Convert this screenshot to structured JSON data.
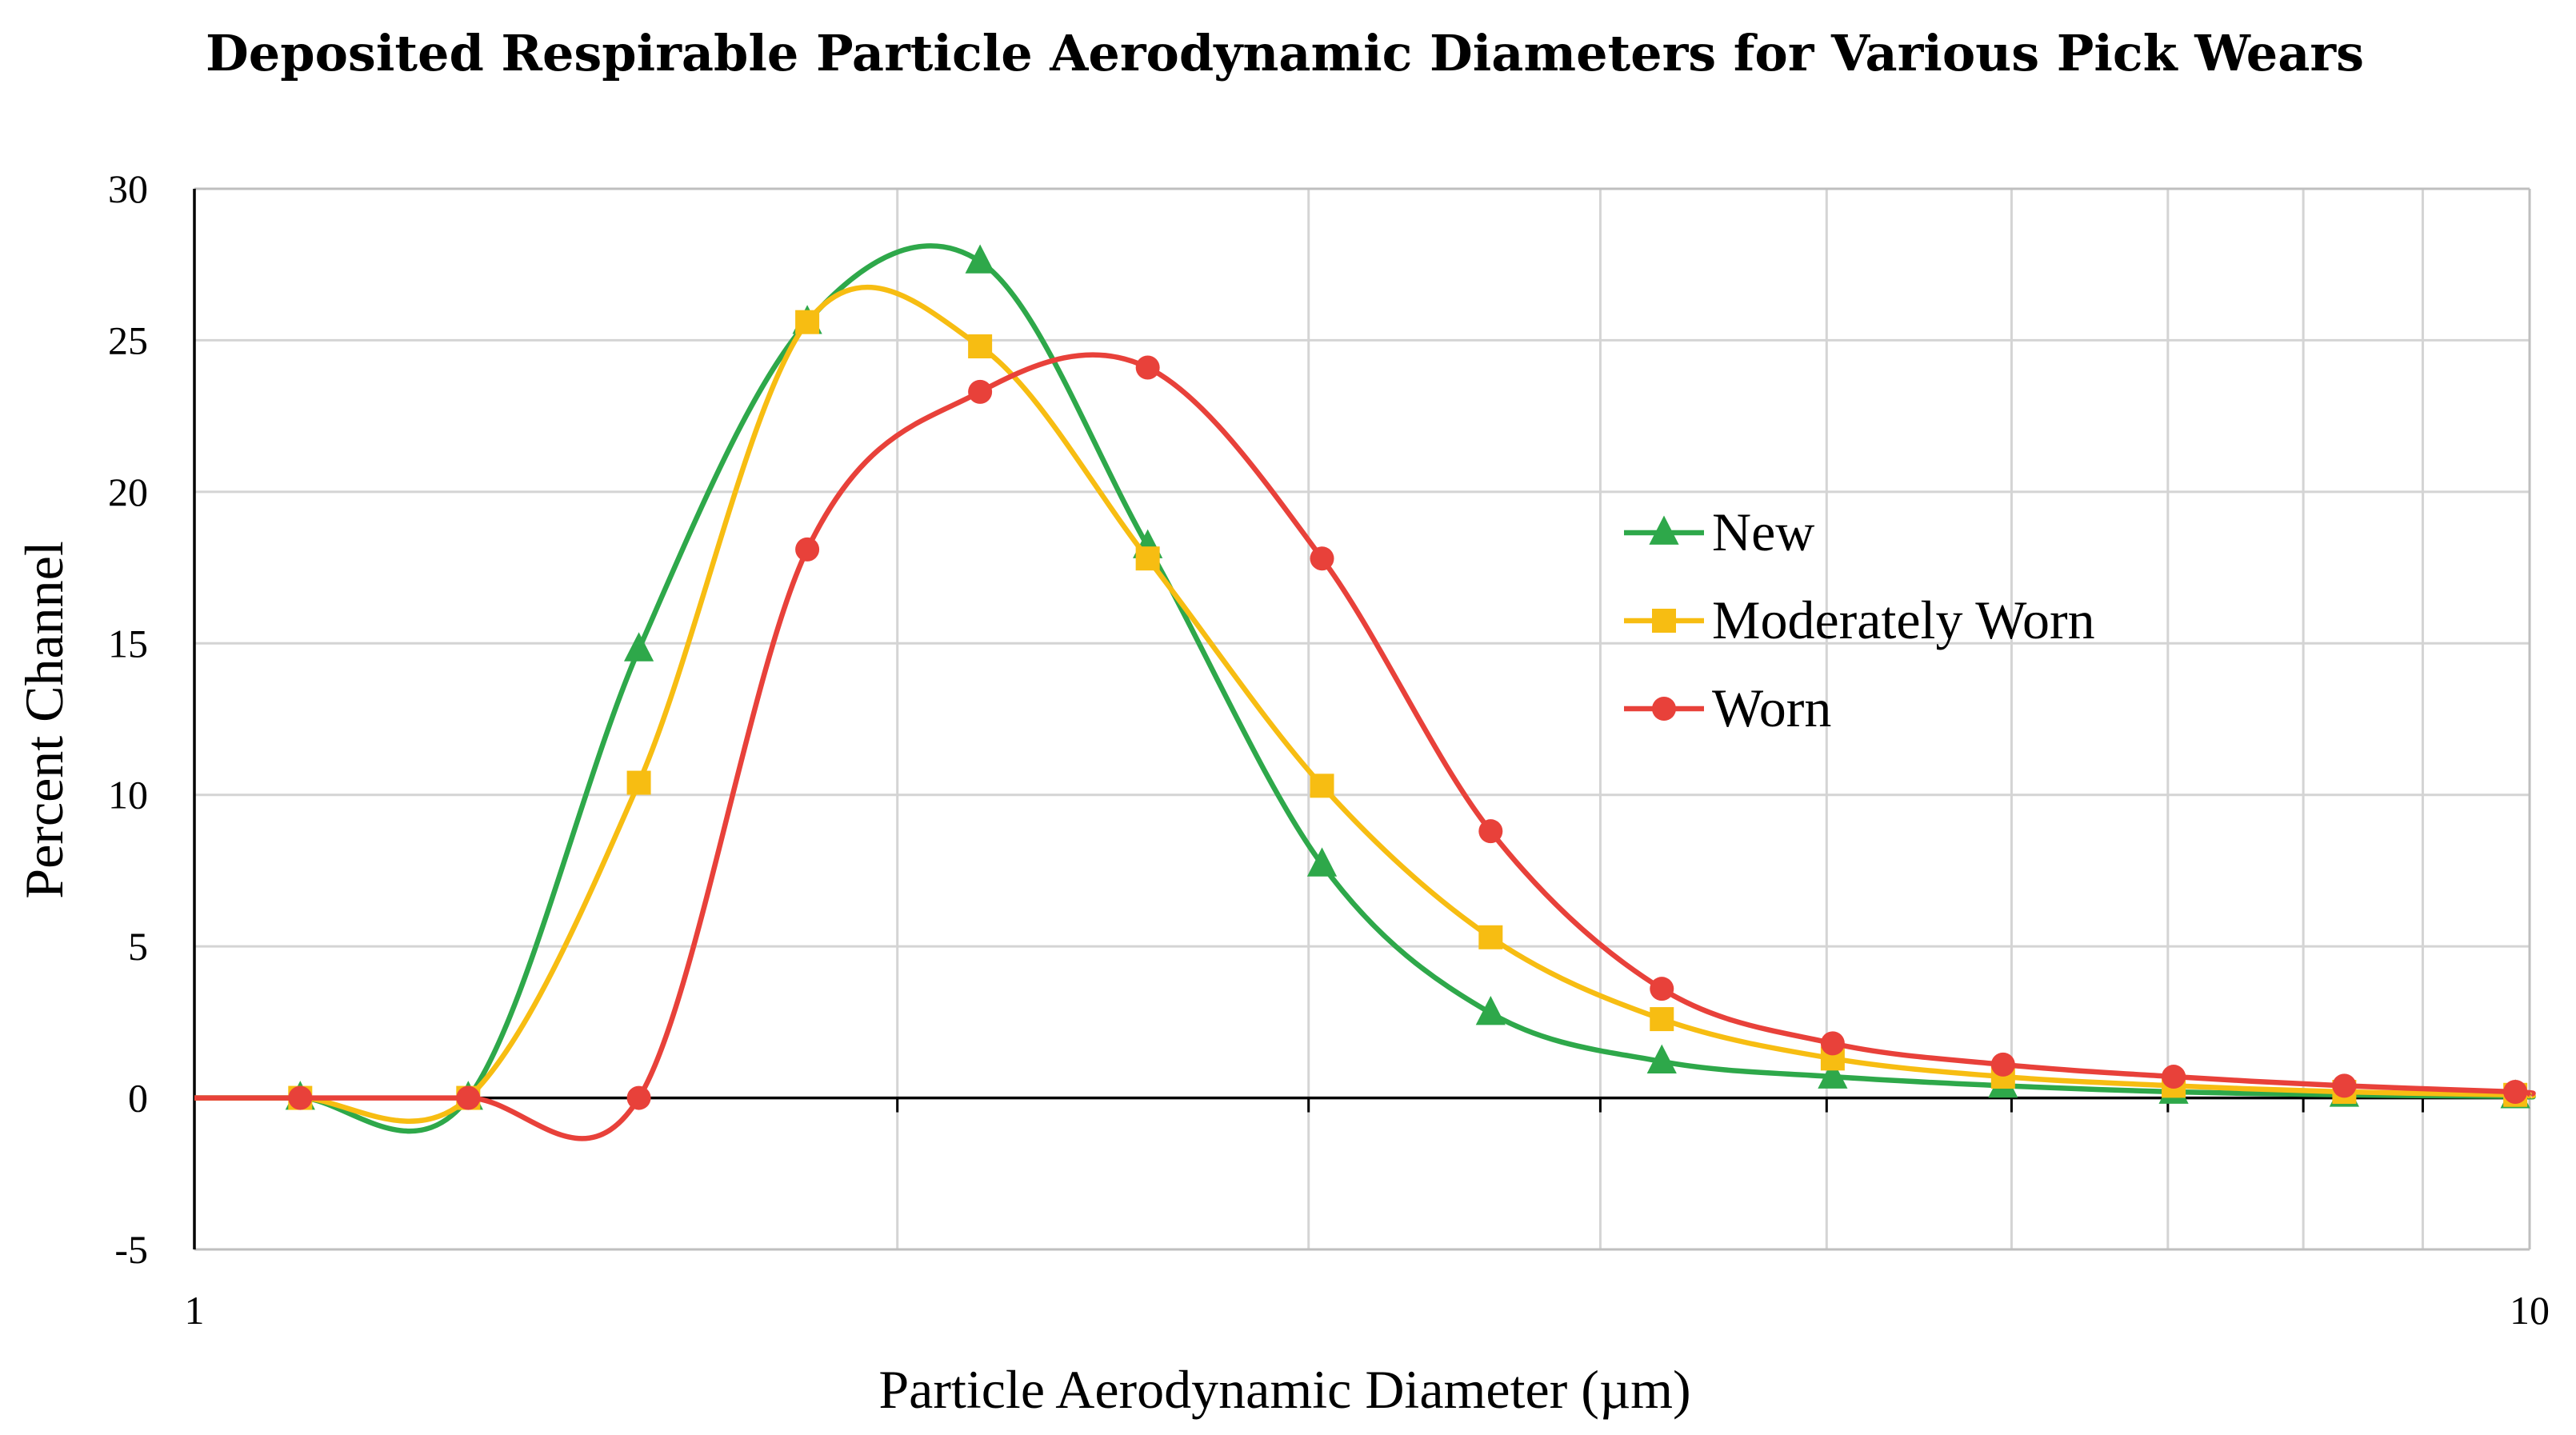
{
  "chart_data": {
    "type": "line",
    "title": "Deposited Respirable Particle Aerodynamic Diameters for Various Pick Wears",
    "xlabel": "Particle Aerodynamic Diameter (µm)",
    "ylabel": "Percent Channel",
    "xscale": "log",
    "xlim": [
      1,
      10
    ],
    "ylim": [
      -5,
      30
    ],
    "xticks": [
      1,
      10
    ],
    "xtick_labels": [
      "1",
      "10"
    ],
    "yticks": [
      -5,
      0,
      5,
      10,
      15,
      20,
      25,
      30
    ],
    "ytick_labels": [
      "-5",
      "0",
      "5",
      "10",
      "15",
      "20",
      "25",
      "30"
    ],
    "grid": true,
    "smooth": true,
    "legend_position": "center-right",
    "x": [
      1.11,
      1.31,
      1.55,
      1.83,
      2.17,
      2.56,
      3.04,
      3.59,
      4.25,
      5.03,
      5.95,
      7.04,
      8.33,
      9.86
    ],
    "series": [
      {
        "name": "New",
        "color": "#2ea84a",
        "marker": "triangle",
        "values": [
          0,
          0,
          14.8,
          25.6,
          27.6,
          18.2,
          7.7,
          2.8,
          1.2,
          0.7,
          0.4,
          0.2,
          0.1,
          0.05
        ]
      },
      {
        "name": "Moderately Worn",
        "color": "#f7bd12",
        "marker": "square",
        "values": [
          0,
          0,
          10.4,
          25.6,
          24.8,
          17.8,
          10.3,
          5.3,
          2.6,
          1.3,
          0.7,
          0.4,
          0.2,
          0.1
        ]
      },
      {
        "name": "Worn",
        "color": "#e8413a",
        "marker": "circle",
        "values": [
          0,
          0,
          0,
          18.1,
          23.3,
          24.1,
          17.8,
          8.8,
          3.6,
          1.8,
          1.1,
          0.7,
          0.4,
          0.2
        ]
      }
    ]
  }
}
